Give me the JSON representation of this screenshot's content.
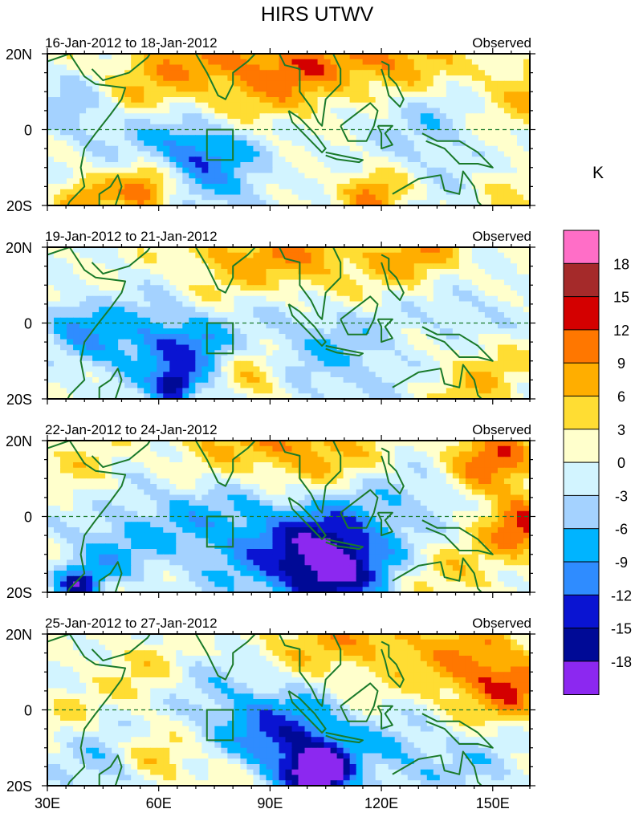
{
  "chart_data": {
    "type": "heatmap",
    "title": "HIRS UTWV",
    "unit_label": "K",
    "x_ticks": [
      "30E",
      "60E",
      "90E",
      "120E",
      "150E"
    ],
    "y_ticks": [
      "20N",
      "0",
      "20S"
    ],
    "x_range": [
      30,
      160
    ],
    "y_range": [
      -20,
      20
    ],
    "equator_line": "dashed",
    "colorbar": {
      "levels": [
        "18",
        "15",
        "12",
        "9",
        "6",
        "3",
        "0",
        "-3",
        "-6",
        "-9",
        "-12",
        "-15",
        "-18"
      ],
      "colors": [
        "#ff6ec7",
        "#a52a2a",
        "#d40000",
        "#ff7700",
        "#ffae00",
        "#ffdd33",
        "#ffffcc",
        "#d2f4ff",
        "#a4d2ff",
        "#00b4ff",
        "#2f8cff",
        "#0a14d2",
        "#000a96",
        "#8c28f0"
      ]
    },
    "panels": [
      {
        "label": "16-Jan-2012 to 18-Jan-2012",
        "tag": "Observed"
      },
      {
        "label": "19-Jan-2012 to 21-Jan-2012",
        "tag": "Observed"
      },
      {
        "label": "22-Jan-2012 to 24-Jan-2012",
        "tag": "Observed"
      },
      {
        "label": "25-Jan-2012 to 27-Jan-2012",
        "tag": "Observed"
      }
    ]
  }
}
